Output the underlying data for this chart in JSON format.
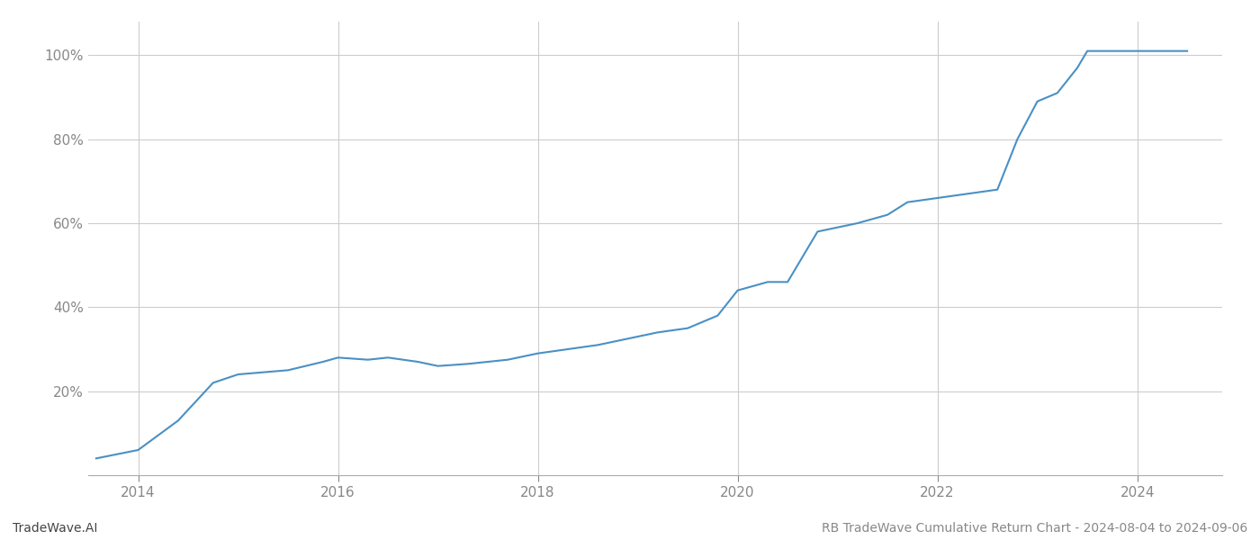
{
  "title": "RB TradeWave Cumulative Return Chart - 2024-08-04 to 2024-09-06",
  "watermark": "TradeWave.AI",
  "line_color": "#4a90c4",
  "line_width": 1.5,
  "background_color": "#ffffff",
  "grid_color": "#cccccc",
  "x_years": [
    2013.58,
    2014.0,
    2014.4,
    2014.75,
    2015.0,
    2015.5,
    2015.85,
    2016.0,
    2016.3,
    2016.5,
    2016.8,
    2017.0,
    2017.3,
    2017.5,
    2017.7,
    2018.0,
    2018.3,
    2018.6,
    2018.9,
    2019.2,
    2019.5,
    2019.8,
    2020.0,
    2020.3,
    2020.5,
    2020.8,
    2021.0,
    2021.2,
    2021.5,
    2021.7,
    2022.0,
    2022.3,
    2022.6,
    2022.8,
    2023.0,
    2023.2,
    2023.4,
    2023.5,
    2023.7,
    2024.0,
    2024.5
  ],
  "y_values": [
    4,
    6,
    13,
    22,
    24,
    25,
    27,
    28,
    27.5,
    28,
    27,
    26,
    26.5,
    27,
    27.5,
    29,
    30,
    31,
    32.5,
    34,
    35,
    38,
    44,
    46,
    46,
    58,
    59,
    60,
    62,
    65,
    66,
    67,
    68,
    80,
    89,
    91,
    97,
    101,
    101,
    101,
    101
  ],
  "xlim": [
    2013.5,
    2024.85
  ],
  "ylim": [
    0,
    108
  ],
  "ytick_values": [
    20,
    40,
    60,
    80,
    100
  ],
  "ytick_labels": [
    "20%",
    "40%",
    "60%",
    "80%",
    "100%"
  ],
  "xtick_values": [
    2014,
    2016,
    2018,
    2020,
    2022,
    2024
  ],
  "xtick_labels": [
    "2014",
    "2016",
    "2018",
    "2020",
    "2022",
    "2024"
  ],
  "tick_color": "#888888",
  "title_color": "#888888",
  "watermark_color": "#444444",
  "title_fontsize": 10,
  "tick_fontsize": 11,
  "watermark_fontsize": 10
}
